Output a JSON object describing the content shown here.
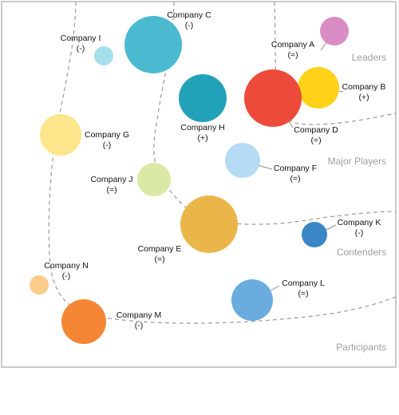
{
  "chart_data": {
    "type": "scatter",
    "zones": [
      {
        "name": "Leaders"
      },
      {
        "name": "Major Players"
      },
      {
        "name": "Contenders"
      },
      {
        "name": "Participants"
      }
    ],
    "points": [
      {
        "name": "Company A",
        "trend": "(=)",
        "color": "#d98cc4"
      },
      {
        "name": "Company B",
        "trend": "(+)",
        "color": "#ffd21a"
      },
      {
        "name": "Company C",
        "trend": "(-)",
        "color": "#4bbad0"
      },
      {
        "name": "Company D",
        "trend": "(=)",
        "color": "#ec4a3a"
      },
      {
        "name": "Company E",
        "trend": "(=)",
        "color": "#eab64a"
      },
      {
        "name": "Company F",
        "trend": "(=)",
        "color": "#b4daf4"
      },
      {
        "name": "Company G",
        "trend": "(-)",
        "color": "#fde58c"
      },
      {
        "name": "Company H",
        "trend": "(+)",
        "color": "#22a2b8"
      },
      {
        "name": "Company I",
        "trend": "(-)",
        "color": "#a6dfec"
      },
      {
        "name": "Company J",
        "trend": "(=)",
        "color": "#dbe9a6"
      },
      {
        "name": "Company K",
        "trend": "(-)",
        "color": "#3a86c6"
      },
      {
        "name": "Company L",
        "trend": "(=)",
        "color": "#6aacde"
      },
      {
        "name": "Company M",
        "trend": "(-)",
        "color": "#f58634"
      },
      {
        "name": "Company N",
        "trend": "(-)",
        "color": "#fccc8c"
      }
    ]
  }
}
